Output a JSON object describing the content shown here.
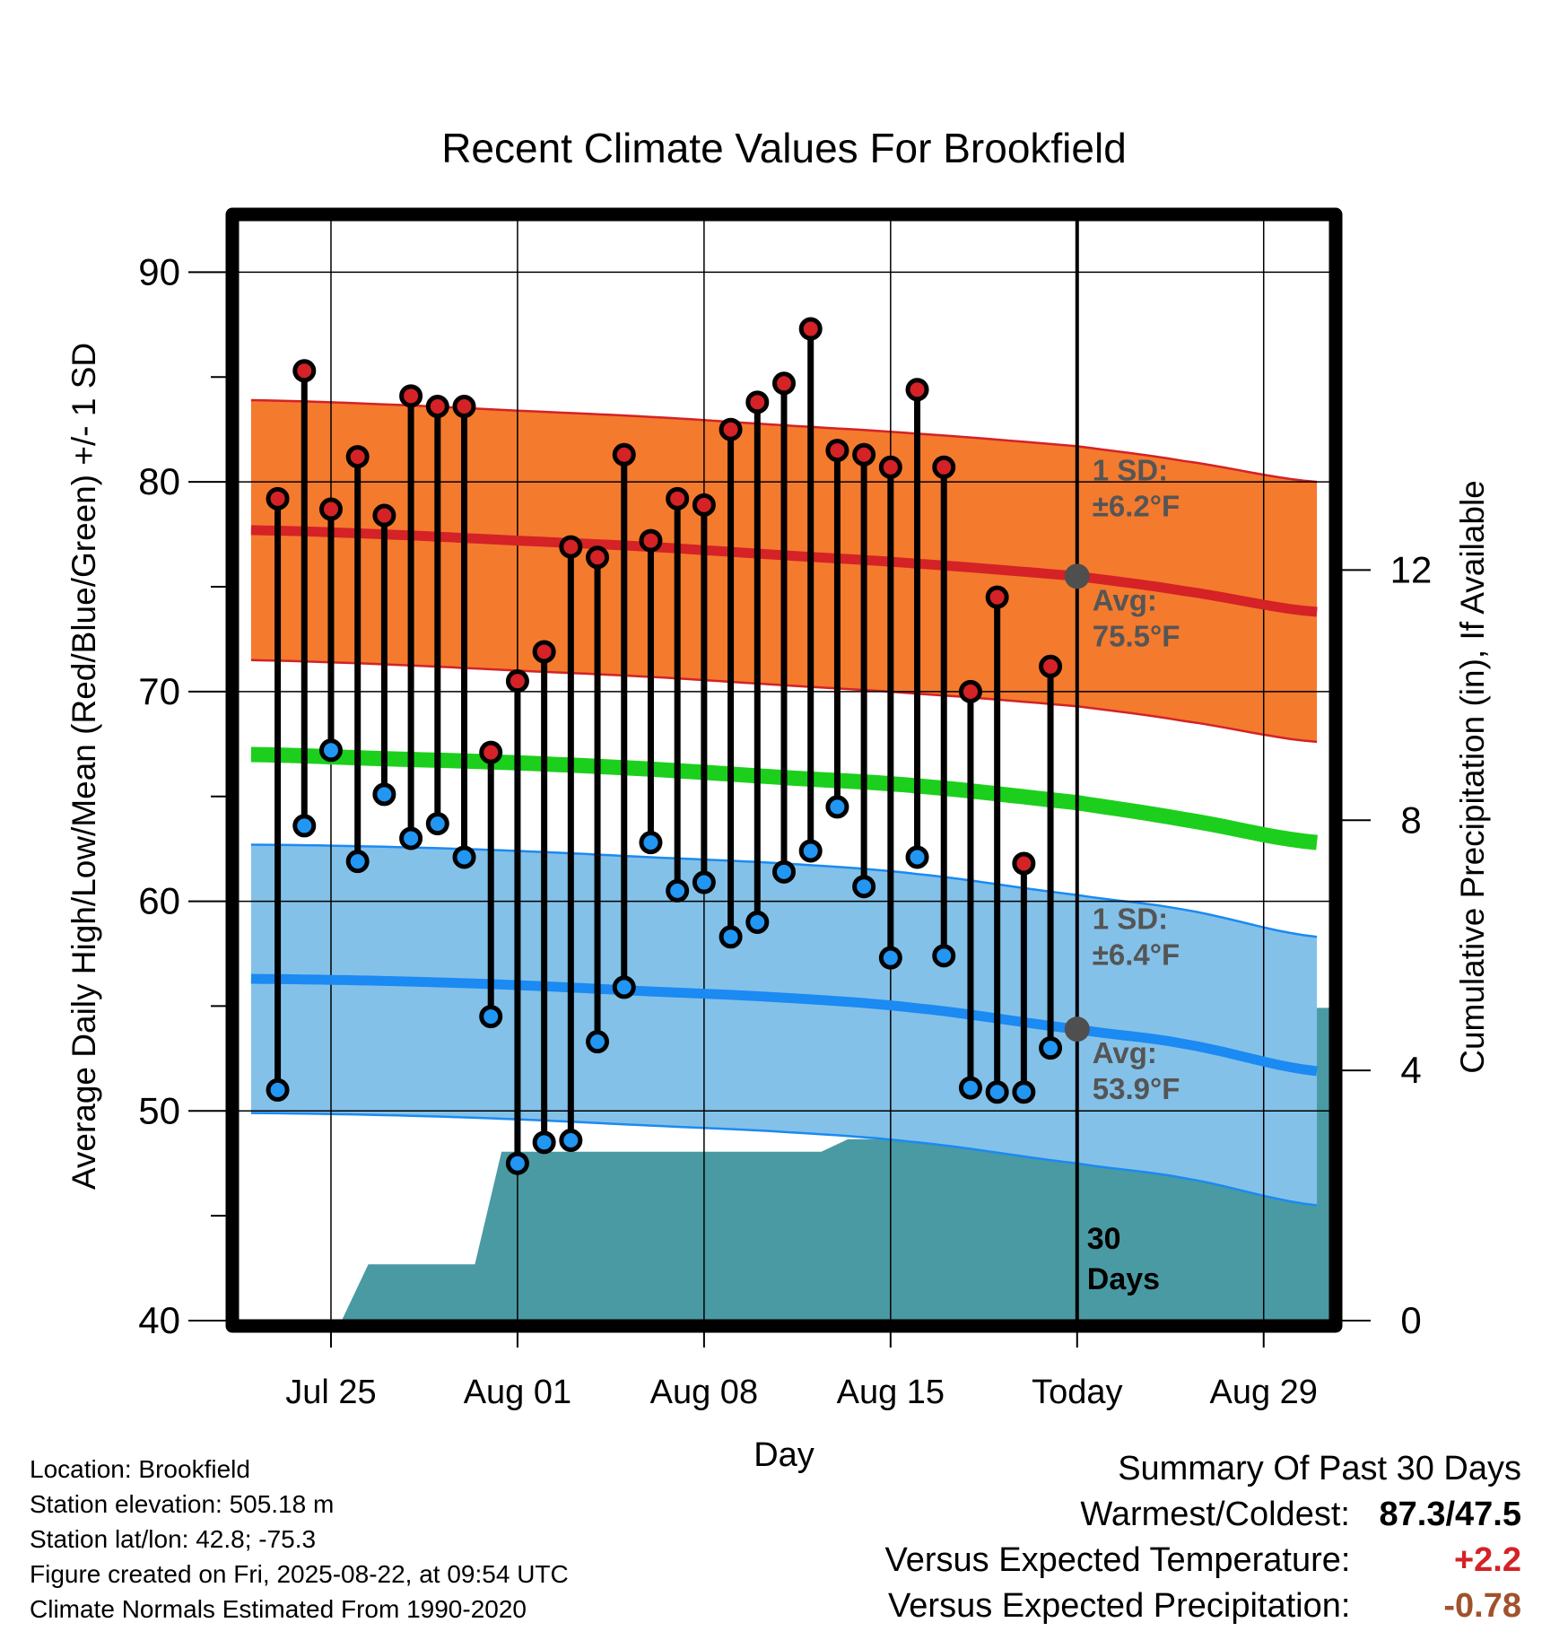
{
  "chart_data": {
    "type": "line",
    "title": "Recent Climate Values For Brookfield",
    "xlabel": "Day",
    "ylabel": "Average Daily High/Low/Mean (Red/Blue/Green) +/- 1 SD",
    "y2label": "Cumulative Precipitation (in), If Available",
    "ylim": [
      40,
      92.5
    ],
    "y2lim": [
      0,
      17.6
    ],
    "yticks": [
      "40",
      "50",
      "60",
      "70",
      "80",
      "90"
    ],
    "y2ticks": [
      "0",
      "4",
      "8",
      "12"
    ],
    "xticks": [
      "Jul 25",
      "Aug 01",
      "Aug 08",
      "Aug 15",
      "Today",
      "Aug 29"
    ],
    "xtick_days": [
      3,
      10,
      17,
      24,
      31,
      38
    ],
    "xlim": [
      -0.5,
      40.5
    ],
    "grid": true,
    "today_day": 31,
    "today_label": [
      "30",
      "Days"
    ],
    "days": [
      1,
      2,
      3,
      4,
      5,
      6,
      7,
      8,
      9,
      10,
      11,
      12,
      13,
      14,
      15,
      16,
      17,
      18,
      19,
      20,
      21,
      22,
      23,
      24,
      25,
      26,
      27,
      28,
      29,
      30
    ],
    "observed_high": [
      79.2,
      85.3,
      78.7,
      81.2,
      78.4,
      84.1,
      83.6,
      83.6,
      67.1,
      70.5,
      71.9,
      76.9,
      76.4,
      81.3,
      77.2,
      79.2,
      78.9,
      82.5,
      83.8,
      84.7,
      87.3,
      81.5,
      81.3,
      80.7,
      84.4,
      80.7,
      70,
      74.5,
      61.8,
      71.2
    ],
    "observed_low": [
      51,
      63.6,
      67.2,
      61.9,
      65.1,
      63,
      63.7,
      62.1,
      54.5,
      47.5,
      48.5,
      48.6,
      53.3,
      55.9,
      62.8,
      60.5,
      60.9,
      58.3,
      59,
      61.4,
      62.4,
      64.5,
      60.7,
      57.3,
      62.1,
      57.4,
      51.1,
      50.9,
      50.9,
      53
    ],
    "normal_curve_days": [
      0,
      5,
      10,
      15,
      20,
      25,
      31,
      35,
      40
    ],
    "normal_high": [
      77.7,
      77.5,
      77.2,
      76.9,
      76.5,
      76.1,
      75.5,
      74.8,
      73.8
    ],
    "normal_high_sd": 6.2,
    "normal_low": [
      56.3,
      56.2,
      56.0,
      55.7,
      55.4,
      54.9,
      53.9,
      53.2,
      51.9
    ],
    "normal_low_sd": 6.4,
    "normal_mean": [
      67.0,
      66.8,
      66.6,
      66.3,
      65.9,
      65.5,
      64.7,
      63.9,
      62.8
    ],
    "precip_step_days": [
      0,
      3.4,
      4.4,
      8.4,
      9.4,
      21.4,
      22.4,
      25.4,
      26.4,
      28.4,
      29.4,
      31.2,
      40.5
    ],
    "precip_cumulative": [
      0,
      0,
      0.9,
      0.9,
      2.7,
      2.7,
      2.9,
      2.9,
      3.0,
      3.0,
      5.0,
      5.0,
      5.0
    ],
    "high_annotation": {
      "sd_label": "1 SD:",
      "sd_value": "±6.2°F",
      "avg_label": "Avg:",
      "avg_value": "75.5°F"
    },
    "low_annotation": {
      "sd_label": "1 SD:",
      "sd_value": "±6.4°F",
      "avg_label": "Avg:",
      "avg_value": "53.9°F"
    },
    "colors": {
      "high_band": "#f47a2e",
      "high_line": "#d42226",
      "low_band": "#84c1e8",
      "low_line": "#1b8af2",
      "mean_line": "#1ccf1c",
      "precip": "#4a9aa3",
      "high_point": "#d42226",
      "low_point": "#2196f3",
      "avg_marker": "#4f4f4f",
      "annotation_text": "#555555"
    }
  },
  "footer": {
    "location": "Location: Brookfield",
    "elevation": "Station elevation: 505.18 m",
    "latlon": "Station lat/lon: 42.8; -75.3",
    "created": "Figure created on Fri, 2025-08-22, at 09:54 UTC",
    "normals": "Climate Normals Estimated From 1990-2020"
  },
  "summary": {
    "title": "Summary Of Past 30 Days",
    "warmest_label": "Warmest/Coldest:",
    "warmest_value": "87.3/47.5",
    "temp_label": "Versus Expected Temperature:",
    "temp_value": "+2.2",
    "temp_color": "#d42226",
    "precip_label": "Versus Expected Precipitation:",
    "precip_value": "-0.78",
    "precip_color": "#a0522d"
  }
}
